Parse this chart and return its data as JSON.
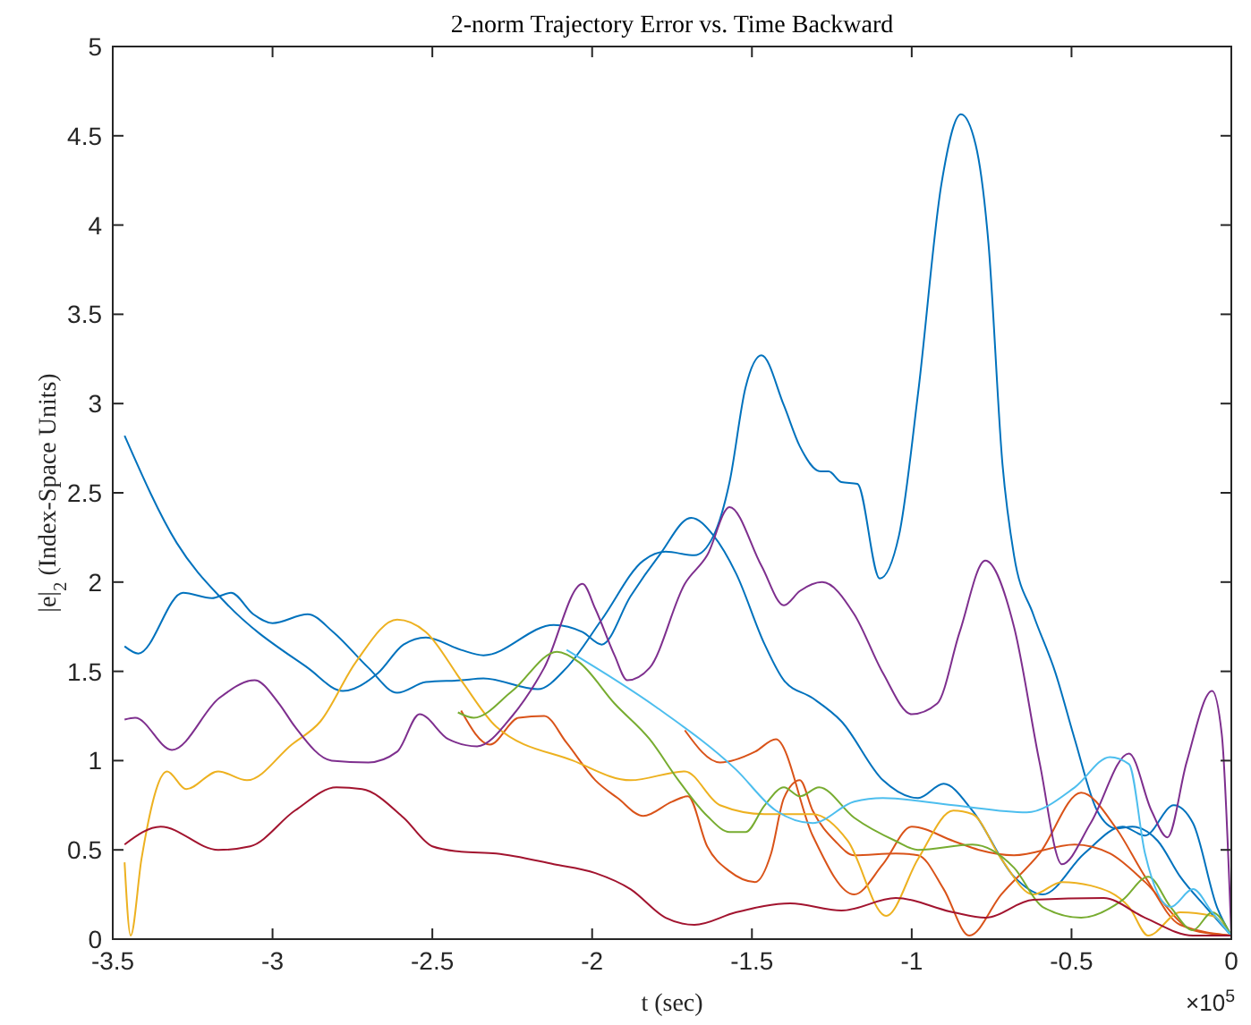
{
  "chart_data": {
    "type": "line",
    "title": "2-norm Trajectory Error vs. Time Backward",
    "xlabel": "t (sec)",
    "ylabel": "|e|$_{2}$ (Index-Space Units)",
    "annotations": [
      "×10$^{5}$"
    ],
    "xlim": [
      -3.5,
      0
    ],
    "xticks": [
      -3.5,
      -3,
      -2.5,
      -2,
      -1.5,
      -1,
      -0.5,
      0
    ],
    "ylim": [
      0,
      5
    ],
    "yticks": [
      0,
      0.5,
      1,
      1.5,
      2,
      2.5,
      3,
      3.5,
      4,
      4.5,
      5
    ],
    "grid": false,
    "marker": "none",
    "line_style": "solid",
    "series": [
      {
        "color": "#0072bd",
        "x": [
          -3.463,
          -3.3,
          -3.15,
          -2.89,
          -2.78,
          -2.67,
          -2.59,
          -2.52,
          -2.41,
          -2.34,
          -2.12,
          -2.03,
          -1.97,
          -1.88,
          -1.79,
          -1.69,
          -1.62,
          -1.55,
          -1.46,
          -1.4,
          -1.31,
          -1.22,
          -1.09,
          -0.98,
          -0.9,
          -0.81,
          -0.68,
          -0.59,
          -0.46,
          -0.34,
          -0.27,
          -0.18,
          -0.12,
          -0.045,
          0
        ],
        "values": [
          2.82,
          2.22,
          1.89,
          1.52,
          1.39,
          1.49,
          1.65,
          1.69,
          1.62,
          1.59,
          1.76,
          1.72,
          1.65,
          1.92,
          2.15,
          2.36,
          2.26,
          2.05,
          1.65,
          1.45,
          1.35,
          1.22,
          0.89,
          0.79,
          0.87,
          0.72,
          0.35,
          0.25,
          0.48,
          0.63,
          0.58,
          0.75,
          0.65,
          0.18,
          0.02
        ]
      },
      {
        "color": "#0072bd",
        "x": [
          -3.463,
          -3.42,
          -3.28,
          -3.19,
          -3.13,
          -3.06,
          -3,
          -2.89,
          -2.81,
          -2.7,
          -2.61,
          -2.52,
          -2.41,
          -2.34,
          -2.17,
          -2.08,
          -1.97,
          -1.84,
          -1.77,
          -1.68,
          -1.62,
          -1.57,
          -1.52,
          -1.47,
          -1.4,
          -1.35,
          -1.285,
          -1.26,
          -1.22,
          -1.17,
          -1.1,
          -1.04,
          -0.98,
          -0.907,
          -0.846,
          -0.8,
          -0.76,
          -0.716,
          -0.68,
          -0.62,
          -0.55,
          -0.49,
          -0.42,
          -0.36,
          -0.31,
          -0.23,
          -0.16,
          -0.08,
          0
        ],
        "values": [
          1.64,
          1.6,
          1.94,
          1.91,
          1.94,
          1.82,
          1.77,
          1.82,
          1.72,
          1.52,
          1.38,
          1.44,
          1.45,
          1.46,
          1.4,
          1.52,
          1.79,
          2.12,
          2.17,
          2.15,
          2.26,
          2.56,
          3.09,
          3.27,
          2.99,
          2.76,
          2.62,
          2.62,
          2.56,
          2.55,
          2.02,
          2.26,
          3.06,
          4.23,
          4.62,
          4.45,
          3.9,
          2.66,
          2.15,
          1.82,
          1.49,
          1.12,
          0.72,
          0.62,
          0.63,
          0.55,
          0.35,
          0.18,
          0.02
        ]
      },
      {
        "color": "#d95319",
        "x": [
          -2.41,
          -2.32,
          -2.23,
          -2.15,
          -2.08,
          -1.99,
          -1.92,
          -1.84,
          -1.75,
          -1.7,
          -1.64,
          -1.57,
          -1.49,
          -1.44,
          -1.4,
          -1.35,
          -1.31,
          -1.24,
          -1.18,
          -1.05,
          -0.98,
          -0.9,
          -0.82,
          -0.72,
          -0.6,
          -0.47,
          -0.36,
          -0.27,
          -0.16,
          0
        ],
        "values": [
          1.28,
          1.09,
          1.24,
          1.25,
          1.1,
          0.89,
          0.79,
          0.69,
          0.77,
          0.8,
          0.52,
          0.38,
          0.32,
          0.48,
          0.79,
          0.89,
          0.72,
          0.55,
          0.47,
          0.48,
          0.47,
          0.28,
          0.02,
          0.25,
          0.48,
          0.82,
          0.62,
          0.35,
          0.08,
          0.02
        ]
      },
      {
        "color": "#d95319",
        "x": [
          -1.71,
          -1.6,
          -1.49,
          -1.425,
          -1.31,
          -1.18,
          -1.09,
          -1,
          -0.87,
          -0.79,
          -0.68,
          -0.49,
          -0.38,
          -0.27,
          -0.12,
          0
        ],
        "values": [
          1.17,
          0.99,
          1.05,
          1.12,
          0.58,
          0.25,
          0.42,
          0.63,
          0.55,
          0.5,
          0.47,
          0.53,
          0.48,
          0.32,
          0.05,
          0.02
        ]
      },
      {
        "color": "#edb120",
        "x": [
          -3.463,
          -3.444,
          -3.41,
          -3.33,
          -3.27,
          -3.17,
          -3.08,
          -2.94,
          -2.85,
          -2.74,
          -2.61,
          -2.52,
          -2.41,
          -2.3,
          -2.06,
          -1.88,
          -1.71,
          -1.6,
          -1.46,
          -1.31,
          -1.2,
          -1.08,
          -0.98,
          -0.87,
          -0.81,
          -0.72,
          -0.62,
          -0.53,
          -0.44,
          -0.32,
          -0.26,
          -0.16,
          -0.06,
          0
        ],
        "values": [
          0.43,
          0.02,
          0.45,
          0.94,
          0.84,
          0.94,
          0.89,
          1.09,
          1.22,
          1.55,
          1.79,
          1.72,
          1.45,
          1.19,
          1,
          0.89,
          0.94,
          0.75,
          0.7,
          0.7,
          0.55,
          0.13,
          0.45,
          0.72,
          0.7,
          0.45,
          0.25,
          0.32,
          0.3,
          0.18,
          0.02,
          0.15,
          0.13,
          0.02
        ]
      },
      {
        "color": "#7e2f8e",
        "x": [
          -3.463,
          -3.43,
          -3.315,
          -3.167,
          -3.056,
          -2.98,
          -2.93,
          -2.815,
          -2.7,
          -2.61,
          -2.54,
          -2.45,
          -2.36,
          -2.25,
          -2.15,
          -2.03,
          -1.99,
          -1.93,
          -1.89,
          -1.82,
          -1.71,
          -1.64,
          -1.57,
          -1.47,
          -1.4,
          -1.35,
          -1.28,
          -1.18,
          -1.09,
          -1,
          -0.92,
          -0.85,
          -0.77,
          -0.68,
          -0.6,
          -0.53,
          -0.44,
          -0.32,
          -0.25,
          -0.2,
          -0.14,
          -0.06,
          -0.03,
          0
        ],
        "values": [
          1.23,
          1.24,
          1.06,
          1.35,
          1.45,
          1.32,
          1.19,
          1,
          0.99,
          1.05,
          1.26,
          1.12,
          1.08,
          1.25,
          1.52,
          1.99,
          1.85,
          1.59,
          1.45,
          1.52,
          1.99,
          2.15,
          2.42,
          2.09,
          1.87,
          1.95,
          2,
          1.82,
          1.49,
          1.26,
          1.32,
          1.72,
          2.12,
          1.75,
          0.99,
          0.42,
          0.65,
          1.04,
          0.72,
          0.57,
          0.99,
          1.39,
          1.15,
          0.02
        ]
      },
      {
        "color": "#77ac30",
        "x": [
          -2.42,
          -2.37,
          -2.25,
          -2.11,
          -2.04,
          -1.93,
          -1.82,
          -1.73,
          -1.64,
          -1.57,
          -1.52,
          -1.46,
          -1.4,
          -1.35,
          -1.29,
          -1.18,
          -1.05,
          -0.98,
          -0.81,
          -0.68,
          -0.59,
          -0.47,
          -0.34,
          -0.26,
          -0.19,
          -0.12,
          -0.06,
          0
        ],
        "values": [
          1.27,
          1.24,
          1.39,
          1.61,
          1.55,
          1.32,
          1.12,
          0.89,
          0.69,
          0.6,
          0.6,
          0.75,
          0.85,
          0.8,
          0.85,
          0.68,
          0.55,
          0.5,
          0.53,
          0.4,
          0.18,
          0.12,
          0.22,
          0.35,
          0.18,
          0.05,
          0.15,
          0.02
        ]
      },
      {
        "color": "#4dbeee",
        "x": [
          -2.08,
          -1.8,
          -1.55,
          -1.425,
          -1.31,
          -1.18,
          -1.09,
          -0.87,
          -0.64,
          -0.49,
          -0.38,
          -0.32,
          -0.27,
          -0.19,
          -0.12,
          -0.06,
          0
        ],
        "values": [
          1.62,
          1.3,
          0.95,
          0.72,
          0.65,
          0.77,
          0.79,
          0.75,
          0.71,
          0.85,
          1.02,
          0.98,
          0.48,
          0.18,
          0.28,
          0.15,
          0.02
        ]
      },
      {
        "color": "#a2142f",
        "x": [
          -3.463,
          -3.35,
          -3.17,
          -3.07,
          -2.93,
          -2.8,
          -2.72,
          -2.59,
          -2.5,
          -2.41,
          -2.3,
          -2.12,
          -1.99,
          -1.88,
          -1.77,
          -1.68,
          -1.55,
          -1.38,
          -1.22,
          -1.05,
          -0.87,
          -0.77,
          -0.62,
          -0.4,
          -0.27,
          -0.12,
          0
        ],
        "values": [
          0.53,
          0.63,
          0.5,
          0.52,
          0.72,
          0.85,
          0.84,
          0.68,
          0.52,
          0.49,
          0.48,
          0.42,
          0.37,
          0.28,
          0.12,
          0.08,
          0.15,
          0.2,
          0.16,
          0.23,
          0.15,
          0.12,
          0.22,
          0.23,
          0.12,
          0.02,
          0.02
        ]
      }
    ]
  }
}
